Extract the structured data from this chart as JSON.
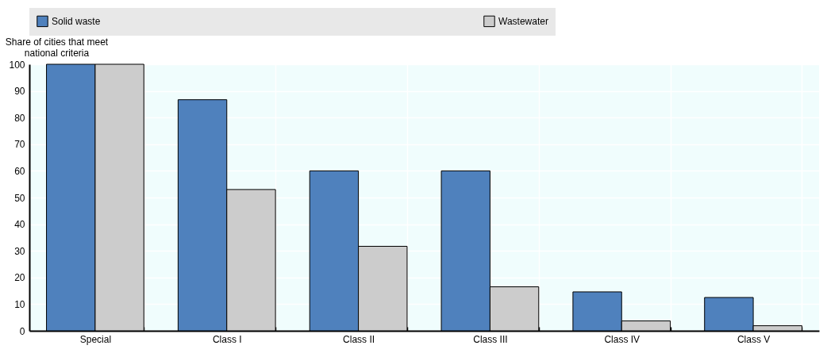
{
  "chart_data": {
    "type": "bar",
    "ylabel": "Share of cities that meet national criteria",
    "categories": [
      "Special",
      "Class I",
      "Class II",
      "Class III",
      "Class IV",
      "Class V"
    ],
    "series": [
      {
        "name": "Solid waste",
        "color": "#4f81bd",
        "values": [
          100,
          86.7,
          60,
          60,
          14.6,
          12.5
        ]
      },
      {
        "name": "Wastewater",
        "color": "#cccccc",
        "values": [
          100,
          53,
          31.7,
          16.5,
          3.7,
          1.9
        ]
      }
    ],
    "ylim": [
      0,
      100
    ],
    "yticks": [
      0,
      10,
      20,
      30,
      40,
      50,
      60,
      70,
      80,
      90,
      100
    ],
    "grid": true,
    "legend": "top"
  }
}
